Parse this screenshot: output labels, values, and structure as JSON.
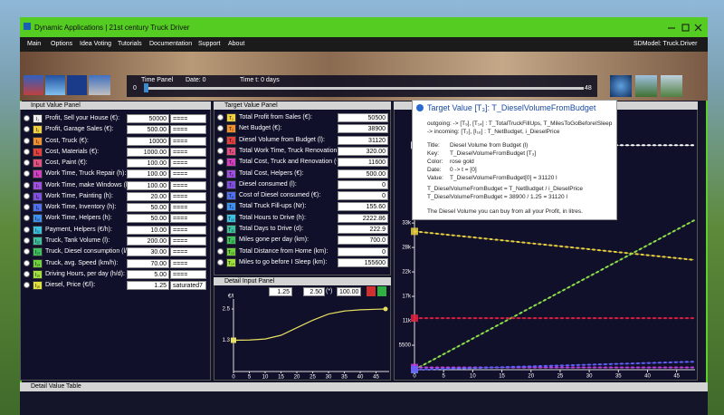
{
  "window": {
    "title": "Dynamic Applications | 21st century Truck Driver"
  },
  "menu": {
    "items": [
      "Main",
      "Options",
      "Idea Voting",
      "Tutorials",
      "Documentation",
      "Support",
      "About"
    ],
    "model": "SDModel:  Truck.Driver"
  },
  "time_panel": {
    "title": "Time Panel",
    "date": "Date:  0",
    "time": "Time t:  0  days",
    "min": "0",
    "max": "48"
  },
  "input_panel": {
    "title": "Input Value Panel",
    "rows": [
      {
        "icon": "I₁",
        "label": "Profit, Sell your House (€):",
        "value": "50000",
        "mode": "===="
      },
      {
        "icon": "I₂",
        "label": "Profit, Garage Sales (€):",
        "value": "500.00",
        "mode": "===="
      },
      {
        "icon": "I₃",
        "label": "Cost, Truck (€):",
        "value": "10000",
        "mode": "===="
      },
      {
        "icon": "I₄",
        "label": "Cost, Materials (€):",
        "value": "1000.00",
        "mode": "===="
      },
      {
        "icon": "I₅",
        "label": "Cost, Paint (€):",
        "value": "100.00",
        "mode": "===="
      },
      {
        "icon": "I₆",
        "label": "Work Time, Truck Repair (h):",
        "value": "100.00",
        "mode": "===="
      },
      {
        "icon": "I₇",
        "label": "Work Time, make Windows (h):",
        "value": "100.00",
        "mode": "===="
      },
      {
        "icon": "I₈",
        "label": "Work Time, Painting (h):",
        "value": "20.00",
        "mode": "===="
      },
      {
        "icon": "I₉",
        "label": "Work Time, Inventory (h):",
        "value": "50.00",
        "mode": "===="
      },
      {
        "icon": "I₁₀",
        "label": "Work Time, Helpers (h):",
        "value": "50.00",
        "mode": "===="
      },
      {
        "icon": "I₁₁",
        "label": "Payment, Helpers (€/h):",
        "value": "10.00",
        "mode": "===="
      },
      {
        "icon": "I₁₂",
        "label": "Truck, Tank Volume (l):",
        "value": "200.00",
        "mode": "===="
      },
      {
        "icon": "I₁₃",
        "label": "Truck, Diesel consumption (l/100 km):",
        "value": "30.00",
        "mode": "===="
      },
      {
        "icon": "I₁₄",
        "label": "Truck, avg. Speed (km/h):",
        "value": "70.00",
        "mode": "===="
      },
      {
        "icon": "I₁₅",
        "label": "Driving Hours, per day (h/d):",
        "value": "5.00",
        "mode": "===="
      },
      {
        "icon": "I₁₆",
        "label": "Diesel, Price (€/l):",
        "value": "1.25",
        "mode": "saturated7"
      }
    ]
  },
  "target_panel": {
    "title": "Target Value Panel",
    "rows": [
      {
        "icon": "T₁",
        "label": "Total Profit from Sales (€):",
        "value": "50500"
      },
      {
        "icon": "T₂",
        "label": "Net Budget (€):",
        "value": "38900"
      },
      {
        "icon": "T₃",
        "label": "Diesel Volume from Budget (l):",
        "value": "31120"
      },
      {
        "icon": "T₄",
        "label": "Total Work Time, Truck Renovation (h):",
        "value": "320.00"
      },
      {
        "icon": "T₅",
        "label": "Total Cost, Truck and Renovation (€):",
        "value": "11600"
      },
      {
        "icon": "T₆",
        "label": "Total Cost, Helpers (€):",
        "value": "500.00"
      },
      {
        "icon": "T₇",
        "label": "Diesel consumed (l):",
        "value": "0"
      },
      {
        "icon": "T₈",
        "label": "Cost of Diesel consumed (€):",
        "value": "0"
      },
      {
        "icon": "T₉",
        "label": "Total Truck Fill-ups (Nr):",
        "value": "155.60"
      },
      {
        "icon": "T₁₀",
        "label": "Total Hours to Drive (h):",
        "value": "2222.86"
      },
      {
        "icon": "T₁₁",
        "label": "Total Days to Drive (d):",
        "value": "222.9"
      },
      {
        "icon": "T₁₂",
        "label": "Miles gone per day (km):",
        "value": "700.0"
      },
      {
        "icon": "T₁₃",
        "label": "Total Distance from Home (km):",
        "value": "0"
      },
      {
        "icon": "T₁₄",
        "label": "Miles to go before I Sleep (km):",
        "value": "155600"
      }
    ]
  },
  "detail_input_panel": {
    "title": "Detail Input Panel",
    "start": "1.25",
    "end": "2.50",
    "op": "(*)",
    "percent": "100.00 %"
  },
  "chart_data": [
    {
      "type": "line",
      "unit": "€/l",
      "x": [
        0,
        5,
        10,
        15,
        20,
        25,
        30,
        35,
        40,
        45,
        48
      ],
      "values": [
        1.25,
        1.26,
        1.3,
        1.45,
        1.75,
        2.05,
        2.3,
        2.42,
        2.47,
        2.49,
        2.5
      ],
      "color": "#e8e060",
      "xlim": [
        0,
        48
      ],
      "ylim": [
        0,
        2.9
      ],
      "xticks": [
        0,
        5,
        10,
        15,
        20,
        25,
        30,
        35,
        40,
        45
      ],
      "yticks": [
        {
          "value": 1.25,
          "label": "1.3"
        },
        2.5
      ]
    },
    {
      "type": "line",
      "x": [
        0,
        48
      ],
      "series": [
        {
          "color": "#ffffff",
          "values": [
            50500,
            50500
          ]
        },
        {
          "color": "#e8d040",
          "values": [
            31120,
            24700
          ]
        },
        {
          "color": "#8ee04a",
          "values": [
            0,
            33600
          ]
        },
        {
          "color": "#e02040",
          "values": [
            11600,
            11600
          ]
        },
        {
          "color": "#c040e0",
          "values": [
            500,
            500
          ]
        },
        {
          "color": "#6060ff",
          "values": [
            0,
            1800
          ]
        }
      ],
      "xlim": [
        0,
        48
      ],
      "ylim": [
        0,
        52800
      ],
      "xticks": [
        0,
        5,
        10,
        15,
        20,
        25,
        30,
        35,
        40,
        45
      ],
      "yticks": [
        {
          "value": 5500,
          "label": "5500"
        },
        {
          "value": 11000,
          "label": "11k"
        },
        {
          "value": 16500,
          "label": "17k"
        },
        {
          "value": 22000,
          "label": "22k"
        },
        {
          "value": 27500,
          "label": "28k"
        },
        {
          "value": 33000,
          "label": "33k"
        }
      ]
    }
  ],
  "tooltip": {
    "title": "Target Value [T₃]:  T_DieselVolumeFromBudget",
    "outgoing": "outgoing: ->  [T₉], [T₁₄] :  T_TotalTruckFillUps,  T_MilesToGoBeforeISleep",
    "incoming": "-> incoming:  [T₂], [I₁₆] :  T_NetBudget,  i_DieselPrice",
    "fields": [
      [
        "Title:",
        "Diesel Volume from Budget (l)"
      ],
      [
        "Key:",
        "T_DieselVolumeFromBudget  [T₃]"
      ],
      [
        "Color:",
        "rose gold"
      ],
      [
        "Date:",
        "0  ->  t = [0]"
      ],
      [
        "Value:",
        "T_DieselVolumeFromBudget[0] = 31120 l"
      ]
    ],
    "formula": "T_DieselVolumeFromBudget  =  T_NetBudget / i_DieselPrice",
    "computed": "T_DieselVolumeFromBudget  =  38900 / 1.25  =  31120 l",
    "description": "The Diesel Volume you can buy from all your Profit, in litres."
  },
  "footer": {
    "title": "Detail Value Table"
  }
}
